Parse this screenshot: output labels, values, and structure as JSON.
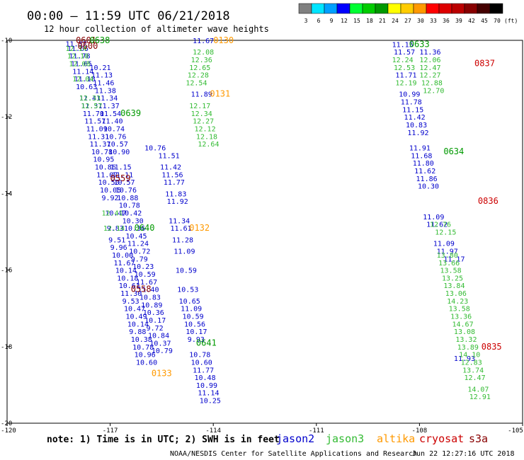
{
  "title": "00:00 – 11:59 UTC 06/21/2018",
  "subtitle": "12 hour collection of altimeter wave heights",
  "note": "note: 1) Time is in UTC; 2) SWH is in feet",
  "credit": "NOAA/NESDIS Center for Satellite Applications and Research",
  "timestamp": "Jun 22 12:27:16 UTC 2018",
  "colorbar": {
    "labels": [
      "3",
      "6",
      "9",
      "12",
      "15",
      "18",
      "21",
      "24",
      "27",
      "30",
      "33",
      "36",
      "39",
      "42",
      "45",
      "70",
      "(ft)"
    ],
    "colors": [
      "#808080",
      "#00e5ff",
      "#00a0ff",
      "#0000ff",
      "#00ff33",
      "#00cc00",
      "#009900",
      "#ffff00",
      "#ffcc00",
      "#ff9900",
      "#ff0000",
      "#dd0000",
      "#bb0000",
      "#880000",
      "#440000",
      "#000000"
    ]
  },
  "legend": [
    {
      "name": "jason2",
      "color": "#0000cc"
    },
    {
      "name": "jason3",
      "color": "#33bb33"
    },
    {
      "name": "altika",
      "color": "#ff9900"
    },
    {
      "name": "cryosat",
      "color": "#cc0000"
    },
    {
      "name": "s3a",
      "color": "#880000"
    }
  ],
  "chart_data": {
    "type": "scatter",
    "xlim": [
      -120,
      -105
    ],
    "ylim": [
      -20,
      -10
    ],
    "xticks": [
      "-120",
      "-117",
      "-114",
      "-111",
      "-108",
      "-105"
    ],
    "yticks": [
      "-10",
      "-12",
      "-14",
      "-16",
      "-18",
      "-20"
    ],
    "tracks": [
      {
        "satellite": "jason2",
        "color": "#0000cc",
        "points": [
          [
            -118.3,
            -10.08,
            "11.37"
          ],
          [
            -118.25,
            -10.2,
            "11.65"
          ],
          [
            -118.2,
            -10.4,
            "11.78"
          ],
          [
            -118.15,
            -10.6,
            "11.65"
          ],
          [
            -118.1,
            -10.8,
            "11.14"
          ],
          [
            -118.05,
            -11.0,
            "11.18"
          ],
          [
            -118.0,
            -11.2,
            "10.63"
          ],
          [
            -117.9,
            -11.5,
            "11.41"
          ],
          [
            -117.85,
            -11.7,
            "11.37"
          ],
          [
            -117.8,
            -11.9,
            "11.70"
          ],
          [
            -117.75,
            -12.1,
            "11.57"
          ],
          [
            -117.7,
            -12.3,
            "11.09"
          ],
          [
            -117.65,
            -12.5,
            "11.31"
          ],
          [
            -117.6,
            -12.7,
            "11.37"
          ],
          [
            -117.55,
            -12.9,
            "10.78"
          ],
          [
            -117.5,
            -13.1,
            "10.95"
          ],
          [
            -117.45,
            -13.3,
            "10.86"
          ],
          [
            -117.4,
            -13.5,
            "11.07"
          ],
          [
            -117.35,
            -13.7,
            "10.50"
          ],
          [
            -117.3,
            -13.9,
            "10.05"
          ],
          [
            -117.25,
            -14.1,
            "9.92"
          ],
          [
            -117.15,
            -14.5,
            "10.47"
          ],
          [
            -117.1,
            -14.9,
            "9.83"
          ],
          [
            -117.05,
            -15.2,
            "9.51"
          ],
          [
            -117.0,
            -15.4,
            "9.96"
          ],
          [
            -116.95,
            -15.6,
            "10.00"
          ],
          [
            -116.9,
            -15.8,
            "11.67"
          ],
          [
            -116.85,
            -16.0,
            "10.14"
          ],
          [
            -116.8,
            -16.2,
            "10.18"
          ],
          [
            -116.75,
            -16.4,
            "10.61"
          ],
          [
            -116.7,
            -16.6,
            "11.30"
          ],
          [
            -116.65,
            -16.8,
            "9.53"
          ],
          [
            -116.6,
            -17.0,
            "10.47"
          ],
          [
            -116.55,
            -17.2,
            "10.49"
          ],
          [
            -116.5,
            -17.4,
            "10.14"
          ],
          [
            -116.45,
            -17.6,
            "9.88"
          ],
          [
            -116.4,
            -17.8,
            "10.38"
          ],
          [
            -116.35,
            -18.0,
            "10.78"
          ],
          [
            -116.3,
            -18.2,
            "10.96"
          ],
          [
            -116.25,
            -18.4,
            "10.60"
          ]
        ]
      },
      {
        "satellite": "jason2",
        "color": "#0000cc",
        "points": [
          [
            -117.6,
            -10.7,
            "10.21"
          ],
          [
            -117.55,
            -10.9,
            "11.13"
          ],
          [
            -117.5,
            -11.1,
            "11.46"
          ],
          [
            -117.45,
            -11.3,
            "11.38"
          ],
          [
            -117.4,
            -11.5,
            "11.34"
          ],
          [
            -117.35,
            -11.7,
            "11.37"
          ],
          [
            -117.3,
            -11.9,
            "11.54"
          ],
          [
            -117.25,
            -12.1,
            "11.40"
          ],
          [
            -117.2,
            -12.3,
            "10.74"
          ],
          [
            -117.15,
            -12.5,
            "10.76"
          ],
          [
            -117.1,
            -12.7,
            "10.57"
          ],
          [
            -117.05,
            -12.9,
            "10.90"
          ],
          [
            -117.0,
            -13.3,
            "11.15"
          ],
          [
            -116.95,
            -13.5,
            "11.11"
          ],
          [
            -116.9,
            -13.7,
            "10.57"
          ],
          [
            -116.85,
            -13.9,
            "10.76"
          ],
          [
            -116.8,
            -14.1,
            "10.88"
          ],
          [
            -116.75,
            -14.3,
            "10.78"
          ],
          [
            -116.7,
            -14.5,
            "10.42"
          ],
          [
            -116.65,
            -14.7,
            "10.30"
          ],
          [
            -116.6,
            -14.9,
            "10.36"
          ],
          [
            -116.55,
            -15.1,
            "10.45"
          ],
          [
            -116.5,
            -15.3,
            "11.24"
          ],
          [
            -116.45,
            -15.5,
            "10.72"
          ],
          [
            -116.4,
            -15.7,
            "9.79"
          ],
          [
            -116.35,
            -15.9,
            "10.23"
          ],
          [
            -116.3,
            -16.1,
            "10.59"
          ],
          [
            -116.25,
            -16.3,
            "11.67"
          ],
          [
            -116.2,
            -16.5,
            "11.40"
          ],
          [
            -116.15,
            -16.7,
            "10.83"
          ],
          [
            -116.1,
            -16.9,
            "10.89"
          ],
          [
            -116.05,
            -17.1,
            "10.36"
          ],
          [
            -116.0,
            -17.3,
            "10.17"
          ],
          [
            -115.95,
            -17.5,
            "9.72"
          ],
          [
            -115.9,
            -17.7,
            "10.84"
          ],
          [
            -115.85,
            -17.9,
            "10.37"
          ],
          [
            -115.8,
            -18.1,
            "10.79"
          ]
        ]
      },
      {
        "satellite": "jason2",
        "color": "#0000cc",
        "points": [
          [
            -116.0,
            -12.8,
            "10.76"
          ],
          [
            -115.6,
            -13.0,
            "11.51"
          ],
          [
            -115.55,
            -13.3,
            "11.42"
          ],
          [
            -115.5,
            -13.5,
            "11.56"
          ],
          [
            -115.45,
            -13.7,
            "11.77"
          ],
          [
            -115.4,
            -14.0,
            "11.83"
          ],
          [
            -115.35,
            -14.2,
            "11.92"
          ],
          [
            -115.3,
            -14.7,
            "11.34"
          ],
          [
            -115.25,
            -14.9,
            "11.61"
          ],
          [
            -115.2,
            -15.2,
            "11.28"
          ],
          [
            -115.15,
            -15.5,
            "11.09"
          ],
          [
            -115.1,
            -16.0,
            "10.59"
          ],
          [
            -115.05,
            -16.5,
            "10.53"
          ],
          [
            -115.0,
            -16.8,
            "10.65"
          ],
          [
            -114.95,
            -17.0,
            "11.09"
          ],
          [
            -114.9,
            -17.2,
            "10.59"
          ],
          [
            -114.85,
            -17.4,
            "10.56"
          ],
          [
            -114.8,
            -17.6,
            "10.17"
          ],
          [
            -114.75,
            -17.8,
            "9.93"
          ],
          [
            -114.7,
            -18.2,
            "10.78"
          ],
          [
            -114.65,
            -18.4,
            "10.60"
          ],
          [
            -114.6,
            -18.6,
            "11.77"
          ],
          [
            -114.55,
            -18.8,
            "10.48"
          ],
          [
            -114.5,
            -19.0,
            "10.99"
          ],
          [
            -114.45,
            -19.2,
            "11.14"
          ],
          [
            -114.4,
            -19.4,
            "10.25"
          ]
        ]
      },
      {
        "satellite": "jason2",
        "color": "#0000cc",
        "points": [
          [
            -114.6,
            -10.0,
            "11.67"
          ],
          [
            -114.65,
            -11.4,
            "11.89"
          ],
          [
            -108.8,
            -10.1,
            "11.15"
          ],
          [
            -108.75,
            -10.3,
            "11.57"
          ],
          [
            -108.7,
            -10.9,
            "11.71"
          ],
          [
            -108.6,
            -11.4,
            "10.99"
          ],
          [
            -108.55,
            -11.6,
            "11.78"
          ],
          [
            -108.5,
            -11.8,
            "11.15"
          ],
          [
            -108.45,
            -12.0,
            "11.42"
          ],
          [
            -108.4,
            -12.2,
            "10.83"
          ],
          [
            -108.35,
            -12.4,
            "11.92"
          ],
          [
            -108.3,
            -12.8,
            "11.91"
          ],
          [
            -108.25,
            -13.0,
            "11.68"
          ],
          [
            -108.2,
            -13.2,
            "11.80"
          ],
          [
            -108.15,
            -13.4,
            "11.62"
          ],
          [
            -108.1,
            -13.6,
            "11.86"
          ],
          [
            -108.05,
            -13.8,
            "10.30"
          ],
          [
            -107.9,
            -14.6,
            "11.09"
          ],
          [
            -107.8,
            -14.8,
            "11.62"
          ],
          [
            -107.6,
            -15.3,
            "11.09"
          ],
          [
            -107.5,
            -15.5,
            "11.97"
          ],
          [
            -107.3,
            -15.7,
            "11.17"
          ],
          [
            -108.0,
            -10.3,
            "11.36"
          ],
          [
            -107.0,
            -18.3,
            "11.93"
          ]
        ]
      },
      {
        "satellite": "jason3",
        "color": "#33bb33",
        "points": [
          [
            -118.3,
            -10.2,
            "12.14"
          ],
          [
            -118.25,
            -10.4,
            "12.10"
          ],
          [
            -118.2,
            -10.6,
            "12.08"
          ],
          [
            -118.1,
            -11.0,
            "12.04"
          ],
          [
            -117.9,
            -11.5,
            "12.33"
          ],
          [
            -117.85,
            -11.7,
            "12.57"
          ],
          [
            -117.25,
            -14.5,
            "12.41"
          ],
          [
            -117.2,
            -14.9,
            "12.14"
          ],
          [
            -114.6,
            -10.3,
            "12.08"
          ],
          [
            -114.65,
            -10.5,
            "12.36"
          ],
          [
            -114.7,
            -10.7,
            "12.65"
          ],
          [
            -114.75,
            -10.9,
            "12.28"
          ],
          [
            -114.8,
            -11.1,
            "12.54"
          ],
          [
            -114.7,
            -11.7,
            "12.17"
          ],
          [
            -114.65,
            -11.9,
            "12.34"
          ],
          [
            -114.6,
            -12.1,
            "12.27"
          ],
          [
            -114.55,
            -12.3,
            "12.12"
          ],
          [
            -114.5,
            -12.5,
            "12.18"
          ],
          [
            -114.45,
            -12.7,
            "12.64"
          ],
          [
            -108.8,
            -10.5,
            "12.24"
          ],
          [
            -108.75,
            -10.7,
            "12.53"
          ],
          [
            -108.7,
            -11.1,
            "12.19"
          ],
          [
            -108.0,
            -10.5,
            "12.06"
          ],
          [
            -108.0,
            -10.7,
            "12.47"
          ],
          [
            -108.0,
            -10.9,
            "12.27"
          ],
          [
            -107.95,
            -11.1,
            "12.88"
          ],
          [
            -107.9,
            -11.3,
            "12.70"
          ],
          [
            -107.7,
            -14.8,
            "12.76"
          ],
          [
            -107.55,
            -15.0,
            "12.15"
          ],
          [
            -107.5,
            -15.6,
            "13.80"
          ],
          [
            -107.45,
            -15.8,
            "13.66"
          ],
          [
            -107.4,
            -16.0,
            "13.58"
          ],
          [
            -107.35,
            -16.2,
            "13.25"
          ],
          [
            -107.3,
            -16.4,
            "13.84"
          ],
          [
            -107.25,
            -16.6,
            "13.06"
          ],
          [
            -107.2,
            -16.8,
            "14.23"
          ],
          [
            -107.15,
            -17.0,
            "13.58"
          ],
          [
            -107.1,
            -17.2,
            "13.36"
          ],
          [
            -107.05,
            -17.4,
            "14.67"
          ],
          [
            -107.0,
            -17.6,
            "13.08"
          ],
          [
            -106.95,
            -17.8,
            "13.32"
          ],
          [
            -106.9,
            -18.0,
            "13.89"
          ],
          [
            -106.85,
            -18.2,
            "14.10"
          ],
          [
            -106.8,
            -18.4,
            "12.83"
          ],
          [
            -106.75,
            -18.6,
            "13.74"
          ],
          [
            -106.7,
            -18.8,
            "12.47"
          ],
          [
            -106.6,
            -19.1,
            "14.07"
          ],
          [
            -106.55,
            -19.3,
            "12.91"
          ]
        ]
      },
      {
        "satellite": "altika",
        "color": "#ff9900",
        "points": [
          [
            -114.0,
            -10.0,
            "0130"
          ],
          [
            -114.1,
            -11.4,
            "0131"
          ],
          [
            -114.7,
            -14.9,
            "0132"
          ],
          [
            -115.8,
            -18.7,
            "0133"
          ]
        ]
      },
      {
        "satellite": "cryosat",
        "color": "#cc0000",
        "points": [
          [
            -106.4,
            -10.6,
            "0837"
          ],
          [
            -106.3,
            -14.2,
            "0836"
          ],
          [
            -106.2,
            -18.0,
            "0835"
          ]
        ]
      },
      {
        "satellite": "s3a",
        "color": "#880000",
        "points": [
          [
            -118.0,
            -10.0,
            "0601"
          ],
          [
            -117.95,
            -10.15,
            "0600"
          ],
          [
            -117.0,
            -13.6,
            "0559"
          ],
          [
            -116.4,
            -16.5,
            "0558"
          ]
        ]
      },
      {
        "satellite": "jason3",
        "color": "#009900",
        "points": [
          [
            -117.6,
            -10.0,
            "0638"
          ],
          [
            -116.7,
            -11.9,
            "0639"
          ],
          [
            -116.3,
            -14.9,
            "0640"
          ],
          [
            -114.5,
            -17.9,
            "0641"
          ],
          [
            -108.3,
            -10.1,
            "0633"
          ],
          [
            -107.3,
            -12.9,
            "0634"
          ]
        ]
      }
    ]
  }
}
